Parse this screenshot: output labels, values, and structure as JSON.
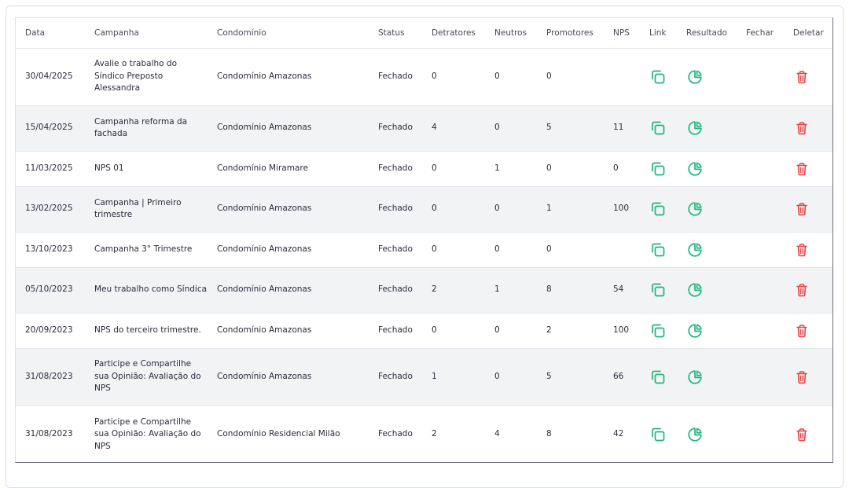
{
  "table": {
    "headers": {
      "data": "Data",
      "campanha": "Campanha",
      "condominio": "Condomínio",
      "status": "Status",
      "detratores": "Detratores",
      "neutros": "Neutros",
      "promotores": "Promotores",
      "nps": "NPS",
      "link": "Link",
      "resultado": "Resultado",
      "fechar": "Fechar",
      "deletar": "Deletar"
    },
    "rows": [
      {
        "data": "30/04/2025",
        "campanha": "Avalie o trabalho do Síndico Preposto Alessandra",
        "condominio": "Condomínio Amazonas",
        "status": "Fechado",
        "detratores": "0",
        "neutros": "0",
        "promotores": "0",
        "nps": ""
      },
      {
        "data": "15/04/2025",
        "campanha": "Campanha reforma da fachada",
        "condominio": "Condomínio Amazonas",
        "status": "Fechado",
        "detratores": "4",
        "neutros": "0",
        "promotores": "5",
        "nps": "11"
      },
      {
        "data": "11/03/2025",
        "campanha": "NPS 01",
        "condominio": "Condomínio Miramare",
        "status": "Fechado",
        "detratores": "0",
        "neutros": "1",
        "promotores": "0",
        "nps": "0"
      },
      {
        "data": "13/02/2025",
        "campanha": "Campanha | Primeiro trimestre",
        "condominio": "Condomínio Amazonas",
        "status": "Fechado",
        "detratores": "0",
        "neutros": "0",
        "promotores": "1",
        "nps": "100"
      },
      {
        "data": "13/10/2023",
        "campanha": "Campanha 3° Trimestre",
        "condominio": "Condomínio Amazonas",
        "status": "Fechado",
        "detratores": "0",
        "neutros": "0",
        "promotores": "0",
        "nps": ""
      },
      {
        "data": "05/10/2023",
        "campanha": "Meu trabalho como Síndica",
        "condominio": "Condomínio Amazonas",
        "status": "Fechado",
        "detratores": "2",
        "neutros": "1",
        "promotores": "8",
        "nps": "54"
      },
      {
        "data": "20/09/2023",
        "campanha": "NPS do terceiro trimestre.",
        "condominio": "Condomínio Amazonas",
        "status": "Fechado",
        "detratores": "0",
        "neutros": "0",
        "promotores": "2",
        "nps": "100"
      },
      {
        "data": "31/08/2023",
        "campanha": "Participe e Compartilhe sua Opinião: Avaliação do NPS",
        "condominio": "Condomínio Amazonas",
        "status": "Fechado",
        "detratores": "1",
        "neutros": "0",
        "promotores": "5",
        "nps": "66"
      },
      {
        "data": "31/08/2023",
        "campanha": "Participe e Compartilhe sua Opinião: Avaliação do NPS",
        "condominio": "Condomínio Residencial Milão",
        "status": "Fechado",
        "detratores": "2",
        "neutros": "4",
        "promotores": "8",
        "nps": "42"
      }
    ]
  },
  "icons": {
    "link": "copy-icon",
    "resultado": "pie-chart-icon",
    "deletar": "trash-icon"
  },
  "colors": {
    "green": "#1fb57a",
    "red": "#e64545",
    "row_alt": "#f2f3f5"
  }
}
